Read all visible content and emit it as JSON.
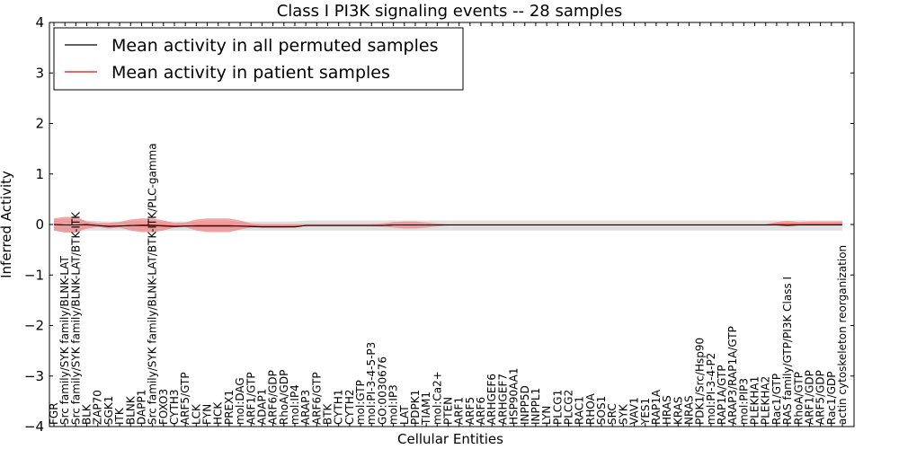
{
  "chart_data": {
    "type": "line",
    "title": "Class I PI3K signaling events -- 28 samples",
    "xlabel": "Cellular Entities",
    "ylabel": "Inferred Activity",
    "ylim": [
      -4,
      4
    ],
    "yticks": [
      "4",
      "3",
      "2",
      "1",
      "0",
      "−1",
      "−2",
      "−3",
      "−4"
    ],
    "grid": false,
    "legend_position": "top-left",
    "legend": [
      {
        "label": "Mean activity in all permuted samples",
        "color": "#000000"
      },
      {
        "label": "Mean activity in patient samples",
        "color": "#ff0000"
      }
    ],
    "categories": [
      "FGR",
      "Src family/SYK family/BLNK-LAT",
      "Src family/SYK family/BLNK-LAT/BTK-ITK",
      "BLK",
      "ZAP70",
      "SGK1",
      "ITK",
      "BLNK",
      "DAPP1",
      "Src family/SYK family/BLNK-LAT/BTK-ITK/PLC-gamma",
      "FOXO3",
      "CYTH3",
      "ARF5/GTP",
      "LCK",
      "FYN",
      "HCK",
      "PREX1",
      "mol:DAG",
      "ARF1/GTP",
      "ADAP1",
      "ARF6/GDP",
      "RhoA/GDP",
      "mol:IP4",
      "ARAP3",
      "ARF6/GTP",
      "BTK",
      "CYTH1",
      "CYTH2",
      "mol:GTP",
      "mol:PI-3-4-5-P3",
      "GO:0030676",
      "mol:IP3",
      "LAT",
      "PDPK1",
      "TIAM1",
      "mol:Ca2+",
      "PTEN",
      "ARF1",
      "ARF5",
      "ARF6",
      "ARHGEF6",
      "ARHGEF7",
      "HSP90AA1",
      "INPP5D",
      "INPPL1",
      "LYN",
      "PLCG1",
      "PLCG2",
      "RAC1",
      "RHOA",
      "SOS1",
      "SRC",
      "SYK",
      "VAV1",
      "YES1",
      "RAP1A",
      "HRAS",
      "KRAS",
      "NRAS",
      "PDK1/Src/Hsp90",
      "mol:PI-3-4-P2",
      "RAP1A/GTP",
      "ARAP3/RAP1A/GTP",
      "mol:PIP3",
      "PLEKHA1",
      "PLEKHA2",
      "Rac1/GTP",
      "RAS family/GTP/PI3K Class I",
      "RhoA/GTP",
      "ARF1/GDP",
      "ARF5/GDP",
      "Rac1/GDP",
      "actin cytoskeleton reorganization"
    ],
    "series": [
      {
        "name": "Mean activity in all permuted samples",
        "color": "#000000",
        "values": [
          0.0,
          -0.01,
          -0.01,
          0.0,
          -0.02,
          -0.04,
          -0.03,
          -0.02,
          -0.02,
          -0.02,
          -0.03,
          -0.04,
          -0.03,
          -0.03,
          -0.03,
          -0.03,
          -0.03,
          -0.03,
          -0.04,
          -0.05,
          -0.05,
          -0.05,
          -0.05,
          -0.02,
          -0.02,
          -0.02,
          -0.02,
          -0.02,
          -0.02,
          -0.02,
          -0.02,
          -0.01,
          -0.01,
          -0.01,
          -0.01,
          -0.01,
          -0.01,
          -0.01,
          -0.01,
          -0.01,
          -0.01,
          -0.01,
          -0.01,
          -0.01,
          -0.01,
          -0.01,
          -0.01,
          -0.01,
          -0.01,
          -0.01,
          -0.01,
          -0.01,
          -0.01,
          -0.01,
          -0.01,
          -0.01,
          -0.01,
          -0.01,
          -0.01,
          -0.01,
          -0.01,
          -0.01,
          -0.01,
          -0.01,
          -0.01,
          -0.01,
          -0.01,
          -0.02,
          -0.01,
          -0.01,
          -0.01,
          -0.01,
          -0.01
        ]
      },
      {
        "name": "Mean activity in patient samples",
        "color": "#ff0000",
        "values": [
          0.0,
          -0.01,
          -0.01,
          -0.01,
          -0.02,
          -0.03,
          -0.03,
          -0.02,
          -0.01,
          -0.01,
          -0.02,
          -0.03,
          -0.03,
          -0.02,
          -0.02,
          -0.02,
          -0.02,
          -0.03,
          -0.03,
          -0.04,
          -0.04,
          -0.04,
          -0.04,
          -0.02,
          -0.02,
          -0.02,
          -0.02,
          -0.02,
          -0.02,
          -0.02,
          -0.02,
          -0.01,
          -0.01,
          -0.01,
          -0.01,
          -0.01,
          -0.01,
          -0.01,
          -0.01,
          -0.01,
          -0.01,
          -0.01,
          -0.01,
          -0.01,
          -0.01,
          -0.01,
          -0.01,
          -0.01,
          -0.01,
          -0.01,
          -0.01,
          -0.01,
          -0.01,
          -0.01,
          -0.01,
          -0.01,
          -0.01,
          -0.01,
          -0.01,
          -0.01,
          -0.01,
          -0.01,
          -0.01,
          -0.01,
          -0.01,
          -0.01,
          0.0,
          0.0,
          0.0,
          0.0,
          0.0,
          0.0,
          0.0
        ]
      }
    ],
    "bands": [
      {
        "name": "permuted range",
        "color": "#cccccc",
        "lower": [
          -0.12,
          -0.14,
          -0.14,
          -0.12,
          -0.12,
          -0.12,
          -0.12,
          -0.12,
          -0.12,
          -0.12,
          -0.12,
          -0.12,
          -0.12,
          -0.12,
          -0.12,
          -0.12,
          -0.12,
          -0.12,
          -0.12,
          -0.12,
          -0.12,
          -0.12,
          -0.12,
          -0.12,
          -0.12,
          -0.12,
          -0.12,
          -0.12,
          -0.12,
          -0.12,
          -0.12,
          -0.12,
          -0.12,
          -0.12,
          -0.12,
          -0.12,
          -0.12,
          -0.12,
          -0.12,
          -0.12,
          -0.12,
          -0.12,
          -0.12,
          -0.12,
          -0.12,
          -0.12,
          -0.12,
          -0.12,
          -0.12,
          -0.12,
          -0.12,
          -0.12,
          -0.12,
          -0.12,
          -0.12,
          -0.12,
          -0.12,
          -0.12,
          -0.12,
          -0.12,
          -0.12,
          -0.12,
          -0.12,
          -0.12,
          -0.12,
          -0.12,
          -0.12,
          -0.12,
          -0.12,
          -0.12,
          -0.12,
          -0.12,
          -0.12
        ],
        "upper": [
          0.1,
          0.1,
          0.1,
          0.08,
          0.07,
          0.06,
          0.06,
          0.06,
          0.06,
          0.06,
          0.06,
          0.06,
          0.06,
          0.06,
          0.06,
          0.06,
          0.06,
          0.06,
          0.06,
          0.06,
          0.06,
          0.06,
          0.06,
          0.08,
          0.08,
          0.08,
          0.08,
          0.08,
          0.08,
          0.08,
          0.08,
          0.08,
          0.08,
          0.08,
          0.08,
          0.08,
          0.08,
          0.08,
          0.08,
          0.08,
          0.08,
          0.08,
          0.08,
          0.08,
          0.08,
          0.08,
          0.08,
          0.08,
          0.08,
          0.08,
          0.08,
          0.08,
          0.08,
          0.08,
          0.08,
          0.08,
          0.08,
          0.08,
          0.08,
          0.08,
          0.08,
          0.08,
          0.08,
          0.08,
          0.08,
          0.08,
          0.08,
          0.08,
          0.08,
          0.08,
          0.08,
          0.08,
          0.08
        ]
      },
      {
        "name": "patient range",
        "color": "#f08080",
        "lower": [
          -0.12,
          -0.16,
          -0.16,
          -0.08,
          -0.05,
          -0.08,
          -0.06,
          -0.12,
          -0.15,
          -0.15,
          -0.12,
          -0.06,
          -0.05,
          -0.12,
          -0.15,
          -0.15,
          -0.15,
          -0.1,
          -0.06,
          -0.06,
          -0.06,
          -0.06,
          -0.05,
          -0.03,
          -0.03,
          -0.03,
          -0.03,
          -0.03,
          -0.03,
          -0.03,
          -0.04,
          -0.06,
          -0.08,
          -0.08,
          -0.06,
          -0.04,
          -0.02,
          -0.02,
          -0.02,
          -0.02,
          -0.02,
          -0.02,
          -0.02,
          -0.02,
          -0.02,
          -0.02,
          -0.02,
          -0.02,
          -0.02,
          -0.02,
          -0.02,
          -0.02,
          -0.02,
          -0.02,
          -0.02,
          -0.02,
          -0.02,
          -0.02,
          -0.02,
          -0.02,
          -0.02,
          -0.02,
          -0.02,
          -0.02,
          -0.02,
          -0.02,
          -0.02,
          -0.02,
          -0.02,
          -0.02,
          -0.02,
          -0.02,
          -0.02
        ],
        "upper": [
          0.12,
          0.15,
          0.15,
          0.06,
          0.03,
          0.03,
          0.05,
          0.1,
          0.12,
          0.12,
          0.08,
          0.03,
          0.04,
          0.1,
          0.12,
          0.12,
          0.12,
          0.08,
          0.02,
          0.01,
          0.01,
          0.01,
          0.01,
          0.01,
          0.01,
          0.01,
          0.01,
          0.01,
          0.01,
          0.01,
          0.02,
          0.05,
          0.06,
          0.06,
          0.04,
          0.02,
          0.01,
          0.01,
          0.01,
          0.01,
          0.01,
          0.01,
          0.01,
          0.01,
          0.01,
          0.01,
          0.01,
          0.01,
          0.01,
          0.01,
          0.01,
          0.01,
          0.01,
          0.01,
          0.01,
          0.01,
          0.01,
          0.01,
          0.01,
          0.01,
          0.01,
          0.01,
          0.01,
          0.01,
          0.01,
          0.01,
          0.05,
          0.07,
          0.05,
          0.06,
          0.06,
          0.06,
          0.06
        ]
      }
    ]
  }
}
